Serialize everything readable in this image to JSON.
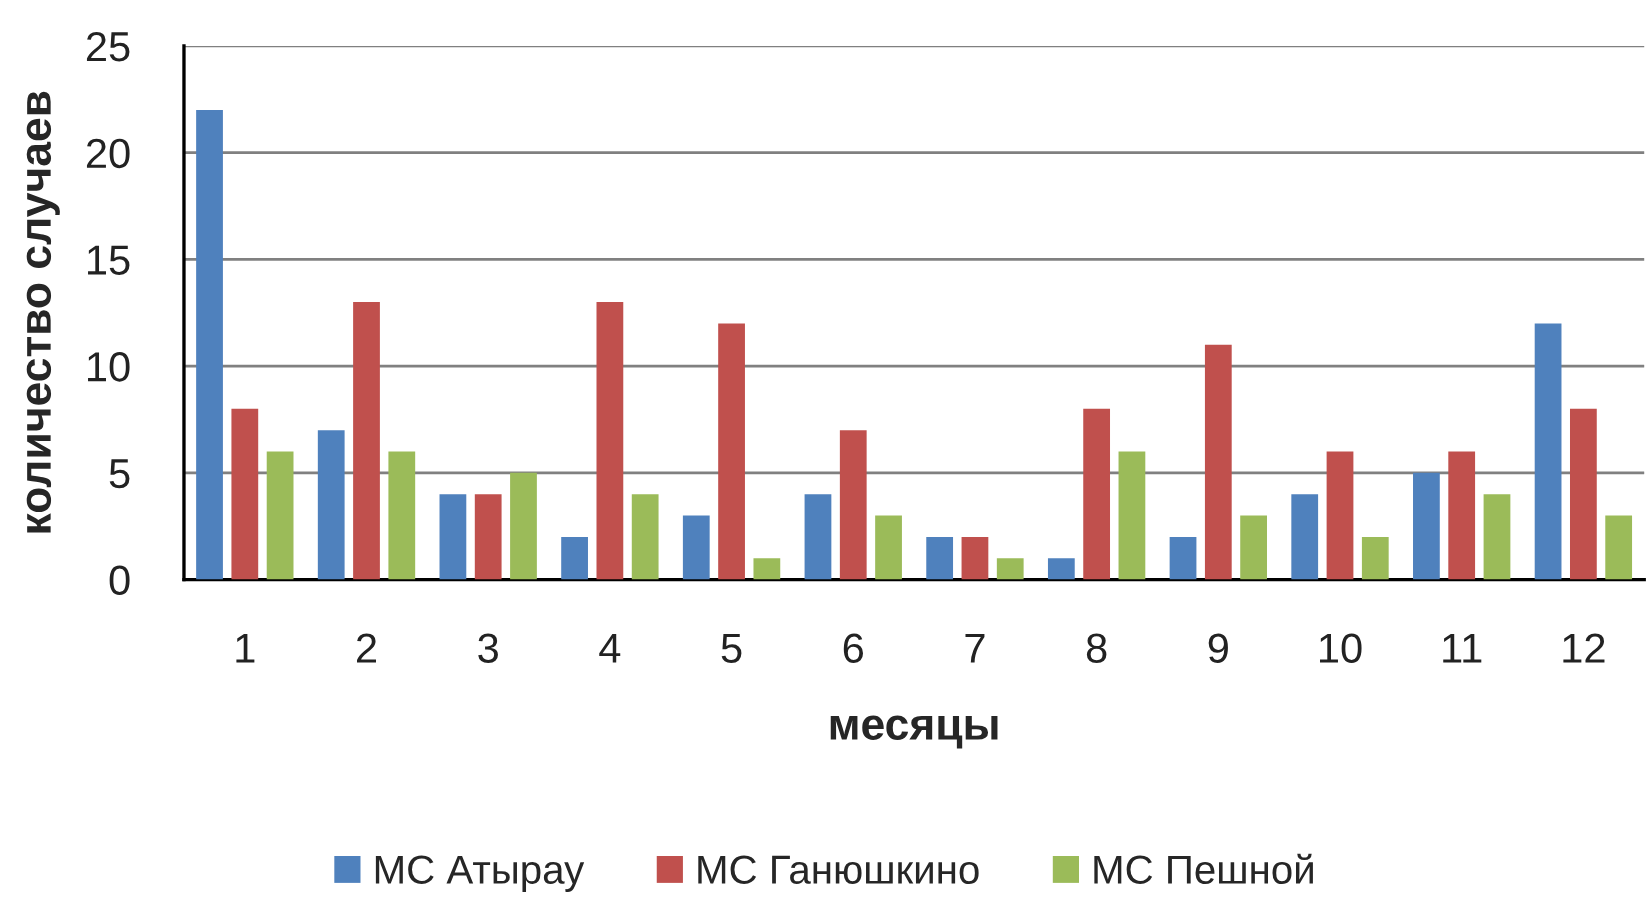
{
  "chart_data": {
    "type": "bar",
    "xlabel": "месяцы",
    "ylabel": "количество случаев",
    "categories": [
      "1",
      "2",
      "3",
      "4",
      "5",
      "6",
      "7",
      "8",
      "9",
      "10",
      "11",
      "12"
    ],
    "series": [
      {
        "name": "МС Атырау",
        "color": "#4f81bd",
        "values": [
          22,
          7,
          4,
          2,
          3,
          4,
          2,
          1,
          2,
          4,
          5,
          12
        ]
      },
      {
        "name": "МС Ганюшкино",
        "color": "#c0504d",
        "values": [
          8,
          13,
          4,
          13,
          12,
          7,
          2,
          8,
          11,
          6,
          6,
          8
        ]
      },
      {
        "name": "МС Пешной",
        "color": "#9bbb59",
        "values": [
          6,
          6,
          5,
          4,
          1,
          3,
          1,
          6,
          3,
          2,
          4,
          3
        ]
      }
    ],
    "ylim": [
      0,
      25
    ],
    "yticks": [
      0,
      5,
      10,
      15,
      20,
      25
    ],
    "grid": "y",
    "legend": "bottom"
  }
}
